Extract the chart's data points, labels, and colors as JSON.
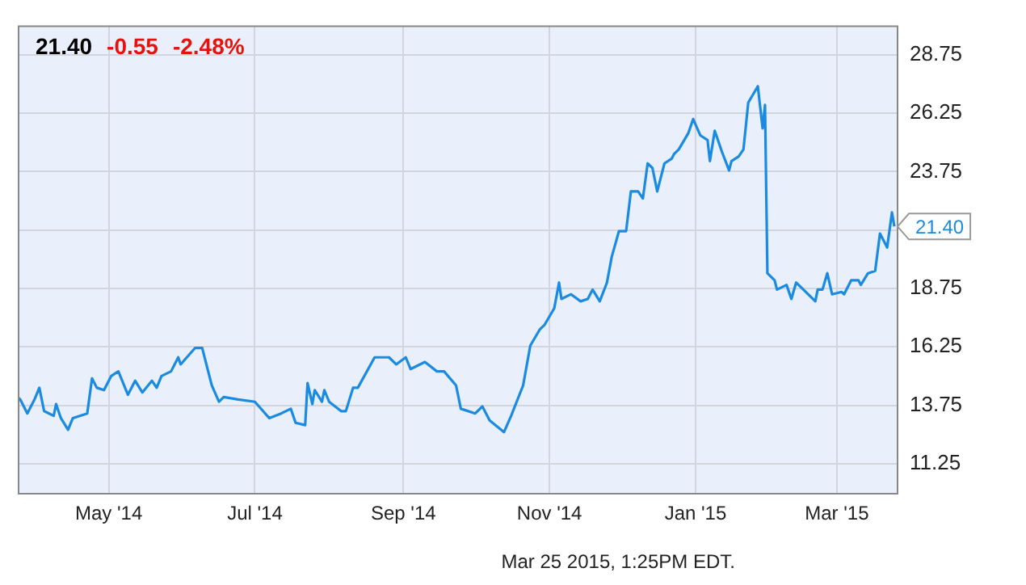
{
  "chart_data": {
    "type": "line",
    "x": [
      "2014-03-24",
      "2014-03-25",
      "2014-03-28",
      "2014-03-31",
      "2014-04-02",
      "2014-04-04",
      "2014-04-08",
      "2014-04-09",
      "2014-04-11",
      "2014-04-14",
      "2014-04-16",
      "2014-04-22",
      "2014-04-24",
      "2014-04-26",
      "2014-04-29",
      "2014-05-02",
      "2014-05-05",
      "2014-05-09",
      "2014-05-12",
      "2014-05-15",
      "2014-05-19",
      "2014-05-21",
      "2014-05-23",
      "2014-05-27",
      "2014-05-30",
      "2014-05-31",
      "2014-06-06",
      "2014-06-09",
      "2014-06-13",
      "2014-06-16",
      "2014-06-18",
      "2014-06-24",
      "2014-07-01",
      "2014-07-07",
      "2014-07-12",
      "2014-07-16",
      "2014-07-18",
      "2014-07-22",
      "2014-07-23",
      "2014-07-25",
      "2014-07-26",
      "2014-07-29",
      "2014-07-30",
      "2014-08-01",
      "2014-08-06",
      "2014-08-08",
      "2014-08-11",
      "2014-08-13",
      "2014-08-20",
      "2014-08-26",
      "2014-08-29",
      "2014-09-02",
      "2014-09-04",
      "2014-09-10",
      "2014-09-15",
      "2014-09-18",
      "2014-09-23",
      "2014-09-25",
      "2014-10-01",
      "2014-10-04",
      "2014-10-07",
      "2014-10-13",
      "2014-10-16",
      "2014-10-21",
      "2014-10-24",
      "2014-10-28",
      "2014-10-30",
      "2014-11-03",
      "2014-11-05",
      "2014-11-06",
      "2014-11-10",
      "2014-11-14",
      "2014-11-17",
      "2014-11-19",
      "2014-11-22",
      "2014-11-25",
      "2014-11-27",
      "2014-11-30",
      "2014-12-03",
      "2014-12-05",
      "2014-12-08",
      "2014-12-10",
      "2014-12-12",
      "2014-12-14",
      "2014-12-16",
      "2014-12-19",
      "2014-12-22",
      "2014-12-23",
      "2014-12-25",
      "2014-12-29",
      "2014-12-31",
      "2015-01-03",
      "2015-01-06",
      "2015-01-07",
      "2015-01-09",
      "2015-01-12",
      "2015-01-15",
      "2015-01-16",
      "2015-01-19",
      "2015-01-21",
      "2015-01-23",
      "2015-01-27",
      "2015-01-28",
      "2015-01-29",
      "2015-01-30",
      "2015-01-31",
      "2015-02-03",
      "2015-02-04",
      "2015-02-08",
      "2015-02-10",
      "2015-02-12",
      "2015-02-17",
      "2015-02-20",
      "2015-02-21",
      "2015-02-23",
      "2015-02-25",
      "2015-02-27",
      "2015-03-03",
      "2015-03-04",
      "2015-03-07",
      "2015-03-10",
      "2015-03-11",
      "2015-03-14",
      "2015-03-17",
      "2015-03-19",
      "2015-03-22",
      "2015-03-24",
      "2015-03-25"
    ],
    "series": [
      {
        "color": "#1a8be0",
        "values": [
          14.1,
          14.0,
          13.4,
          14.0,
          14.5,
          13.5,
          13.3,
          13.8,
          13.2,
          12.7,
          13.2,
          13.4,
          14.9,
          14.5,
          14.4,
          15.0,
          15.2,
          14.2,
          14.8,
          14.3,
          14.8,
          14.5,
          15.0,
          15.2,
          15.8,
          15.5,
          16.2,
          16.2,
          14.6,
          13.9,
          14.1,
          14.0,
          13.9,
          13.2,
          13.4,
          13.6,
          13.0,
          12.9,
          14.7,
          13.8,
          14.4,
          13.9,
          14.4,
          13.9,
          13.5,
          13.5,
          14.5,
          14.5,
          15.8,
          15.8,
          15.5,
          15.8,
          15.3,
          15.6,
          15.2,
          15.2,
          14.6,
          13.6,
          13.4,
          13.7,
          13.1,
          12.6,
          13.3,
          14.6,
          16.3,
          17.0,
          17.2,
          17.9,
          19.0,
          18.3,
          18.5,
          18.2,
          18.3,
          18.7,
          18.2,
          19.0,
          20.1,
          21.2,
          21.2,
          22.9,
          22.9,
          22.6,
          24.1,
          23.9,
          22.9,
          24.1,
          24.3,
          24.5,
          24.7,
          25.4,
          26.0,
          25.3,
          25.1,
          24.2,
          25.5,
          24.6,
          23.8,
          24.2,
          24.4,
          24.7,
          26.7,
          27.4,
          26.5,
          25.6,
          26.6,
          19.4,
          19.1,
          18.7,
          18.9,
          18.3,
          19.0,
          18.5,
          18.2,
          18.7,
          18.7,
          19.4,
          18.5,
          18.6,
          18.5,
          19.1,
          19.1,
          18.9,
          19.4,
          19.5,
          21.1,
          20.5,
          22.0,
          21.4
        ]
      }
    ],
    "xlim": [
      "2014-03-24",
      "2015-03-26"
    ],
    "xticks": [
      {
        "value": "2014-05-01",
        "label": "May '14"
      },
      {
        "value": "2014-07-01",
        "label": "Jul '14"
      },
      {
        "value": "2014-09-01",
        "label": "Sep '14"
      },
      {
        "value": "2014-11-01",
        "label": "Nov '14"
      },
      {
        "value": "2015-01-01",
        "label": "Jan '15"
      },
      {
        "value": "2015-03-01",
        "label": "Mar '15"
      }
    ],
    "ylim": [
      10,
      30
    ],
    "yticks": [
      11.25,
      13.75,
      16.25,
      18.75,
      {
        "value": 21.25,
        "label": null
      },
      23.75,
      26.25,
      28.75
    ],
    "grid": true,
    "marker": "none",
    "line_style": "solid",
    "annotations": [
      "21.40",
      "-0.55",
      "-2.48%",
      {
        "text": "21.40",
        "x": "2015-03-25",
        "y": 21.4
      },
      "Mar 25 2015, 1:25PM EDT."
    ]
  }
}
